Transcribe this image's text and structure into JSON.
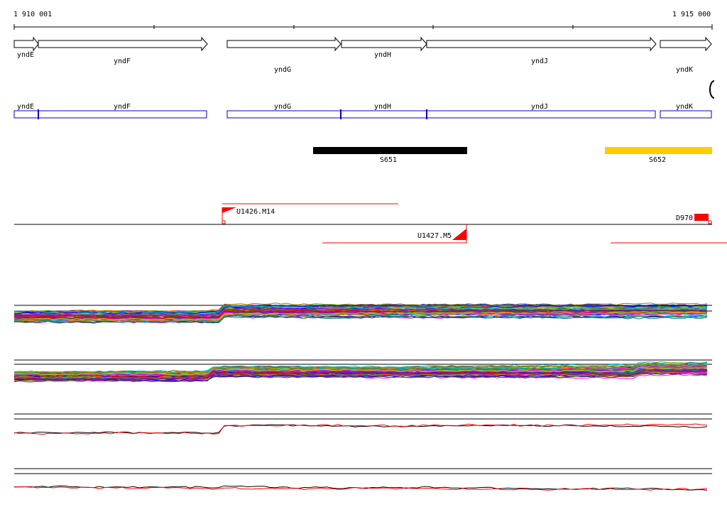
{
  "ruler": {
    "start_label": "1 910 001",
    "end_label": "1 915 000"
  },
  "genes_track": [
    {
      "name": "yndE",
      "label": "yndE"
    },
    {
      "name": "yndF",
      "label": "yndF"
    },
    {
      "name": "yndG",
      "label": "yndG"
    },
    {
      "name": "yndH",
      "label": "yndH"
    },
    {
      "name": "yndJ",
      "label": "yndJ"
    },
    {
      "name": "yndK",
      "label": "yndK"
    }
  ],
  "cds_track": [
    {
      "name": "yndE",
      "label": "yndE"
    },
    {
      "name": "yndF",
      "label": "yndF"
    },
    {
      "name": "yndG",
      "label": "yndG"
    },
    {
      "name": "yndH",
      "label": "yndH"
    },
    {
      "name": "yndJ",
      "label": "yndJ"
    },
    {
      "name": "yndK",
      "label": "yndK"
    }
  ],
  "segments": [
    {
      "label": "S651",
      "color": "#000000"
    },
    {
      "label": "S652",
      "color": "#ffcc00"
    }
  ],
  "transcripts": [
    {
      "label": "U1426.M14",
      "color": "#ff0000"
    },
    {
      "label": "U1427.M5",
      "color": "#ff0000"
    },
    {
      "label": "D970",
      "color": "#ff0000"
    }
  ],
  "expression_panels": [
    {
      "name": "panel-1",
      "palette": [
        "#ff0000",
        "#00aa00",
        "#0000ff",
        "#ff00ff",
        "#00cccc",
        "#cccc00",
        "#ff8800",
        "#8800ff",
        "#008888",
        "#888800",
        "#aa0066",
        "#444444"
      ]
    },
    {
      "name": "panel-2",
      "palette": [
        "#ff0000",
        "#00aa00",
        "#0000ff",
        "#ff00ff",
        "#00cccc",
        "#cccc00",
        "#ff8800",
        "#8800ff",
        "#008888",
        "#888800",
        "#aa0066",
        "#444444"
      ]
    },
    {
      "name": "panel-3",
      "palette": [
        "#000000",
        "#ff0000"
      ]
    },
    {
      "name": "panel-4",
      "palette": [
        "#000000",
        "#ff0000"
      ]
    }
  ]
}
